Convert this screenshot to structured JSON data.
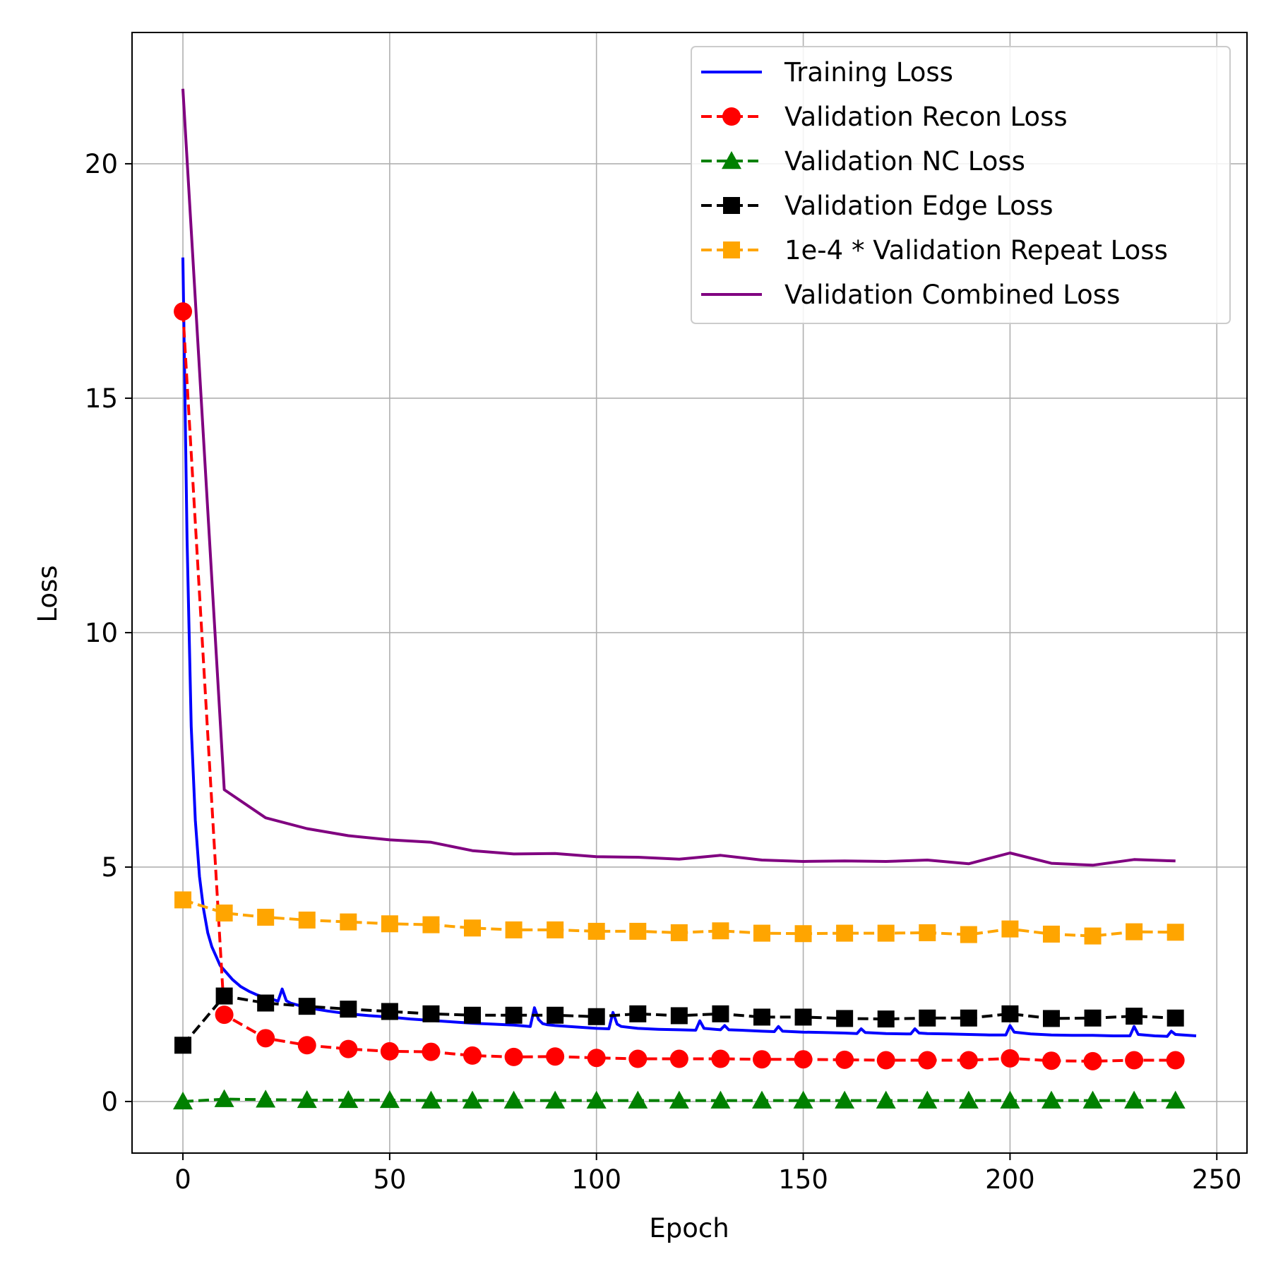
{
  "chart_data": {
    "type": "line",
    "title": "",
    "xlabel": "Epoch",
    "ylabel": "Loss",
    "xlim": [
      -12.3,
      257.3
    ],
    "ylim": [
      -1.1,
      22.8
    ],
    "xticks": [
      0,
      50,
      100,
      150,
      200,
      250
    ],
    "yticks": [
      0,
      5,
      10,
      15,
      20
    ],
    "grid": true,
    "legend_position": "upper-right",
    "series": [
      {
        "name": "Training Loss",
        "color": "#0000ff",
        "style": "solid",
        "marker": "none",
        "x": [
          0,
          1,
          2,
          3,
          4,
          5,
          6,
          7,
          8,
          9,
          10,
          12,
          14,
          16,
          18,
          20,
          22,
          23,
          24,
          25,
          26,
          28,
          30,
          35,
          40,
          45,
          50,
          55,
          60,
          65,
          70,
          75,
          80,
          84,
          85,
          86,
          87,
          88,
          90,
          95,
          100,
          103,
          104,
          105,
          106,
          110,
          115,
          120,
          124,
          125,
          126,
          130,
          131,
          132,
          135,
          140,
          143,
          144,
          145,
          150,
          155,
          160,
          163,
          164,
          165,
          170,
          175,
          176,
          177,
          178,
          180,
          185,
          190,
          195,
          199,
          200,
          201,
          205,
          210,
          215,
          220,
          225,
          229,
          230,
          231,
          235,
          238,
          239,
          240,
          245
        ],
        "y": [
          18.0,
          12.0,
          8.0,
          6.0,
          4.8,
          4.1,
          3.6,
          3.3,
          3.1,
          2.9,
          2.8,
          2.6,
          2.45,
          2.35,
          2.27,
          2.22,
          2.17,
          2.14,
          2.4,
          2.15,
          2.1,
          2.05,
          2.0,
          1.93,
          1.87,
          1.83,
          1.8,
          1.76,
          1.73,
          1.7,
          1.67,
          1.65,
          1.63,
          1.6,
          2.0,
          1.75,
          1.66,
          1.64,
          1.62,
          1.59,
          1.56,
          1.55,
          1.9,
          1.65,
          1.6,
          1.56,
          1.54,
          1.53,
          1.52,
          1.72,
          1.56,
          1.53,
          1.62,
          1.53,
          1.52,
          1.5,
          1.49,
          1.6,
          1.5,
          1.48,
          1.47,
          1.46,
          1.45,
          1.55,
          1.47,
          1.45,
          1.44,
          1.44,
          1.55,
          1.46,
          1.45,
          1.44,
          1.43,
          1.42,
          1.42,
          1.62,
          1.48,
          1.44,
          1.42,
          1.41,
          1.41,
          1.4,
          1.4,
          1.6,
          1.43,
          1.4,
          1.39,
          1.5,
          1.43,
          1.4
        ]
      },
      {
        "name": "Validation Recon Loss",
        "color": "#ff0000",
        "style": "dashed",
        "marker": "circle",
        "x": [
          0,
          10,
          20,
          30,
          40,
          50,
          60,
          70,
          80,
          90,
          100,
          110,
          120,
          130,
          140,
          150,
          160,
          170,
          180,
          190,
          200,
          210,
          220,
          230,
          240
        ],
        "y": [
          16.85,
          1.85,
          1.35,
          1.2,
          1.12,
          1.07,
          1.06,
          0.98,
          0.95,
          0.96,
          0.93,
          0.91,
          0.91,
          0.91,
          0.9,
          0.9,
          0.89,
          0.88,
          0.88,
          0.88,
          0.92,
          0.87,
          0.86,
          0.88,
          0.88
        ]
      },
      {
        "name": "Validation NC Loss",
        "color": "#008000",
        "style": "dashed",
        "marker": "triangle",
        "x": [
          0,
          10,
          20,
          30,
          40,
          50,
          60,
          70,
          80,
          90,
          100,
          110,
          120,
          130,
          140,
          150,
          160,
          170,
          180,
          190,
          200,
          210,
          220,
          230,
          240
        ],
        "y": [
          0.0,
          0.05,
          0.04,
          0.03,
          0.03,
          0.03,
          0.02,
          0.02,
          0.02,
          0.02,
          0.02,
          0.02,
          0.02,
          0.02,
          0.02,
          0.02,
          0.02,
          0.02,
          0.02,
          0.02,
          0.02,
          0.02,
          0.02,
          0.02,
          0.02
        ]
      },
      {
        "name": "Validation Edge Loss",
        "color": "#000000",
        "style": "dashed",
        "marker": "square",
        "x": [
          0,
          10,
          20,
          30,
          40,
          50,
          60,
          70,
          80,
          90,
          100,
          110,
          120,
          130,
          140,
          150,
          160,
          170,
          180,
          190,
          200,
          210,
          220,
          230,
          240
        ],
        "y": [
          1.2,
          2.25,
          2.1,
          2.03,
          1.97,
          1.92,
          1.87,
          1.84,
          1.84,
          1.84,
          1.81,
          1.87,
          1.83,
          1.87,
          1.8,
          1.8,
          1.77,
          1.76,
          1.78,
          1.78,
          1.87,
          1.77,
          1.78,
          1.82,
          1.78
        ]
      },
      {
        "name": "1e-4 * Validation Repeat Loss",
        "color": "#ffa500",
        "style": "dashed",
        "marker": "square",
        "x": [
          0,
          10,
          20,
          30,
          40,
          50,
          60,
          70,
          80,
          90,
          100,
          110,
          120,
          130,
          140,
          150,
          160,
          170,
          180,
          190,
          200,
          210,
          220,
          230,
          240
        ],
        "y": [
          4.3,
          4.02,
          3.93,
          3.87,
          3.83,
          3.79,
          3.77,
          3.7,
          3.66,
          3.66,
          3.63,
          3.63,
          3.6,
          3.64,
          3.59,
          3.58,
          3.59,
          3.59,
          3.6,
          3.56,
          3.68,
          3.57,
          3.53,
          3.62,
          3.61
        ]
      },
      {
        "name": "Validation Combined Loss",
        "color": "#800080",
        "style": "solid",
        "marker": "none",
        "x": [
          0,
          10,
          20,
          30,
          40,
          50,
          60,
          70,
          80,
          90,
          100,
          110,
          120,
          130,
          140,
          150,
          160,
          170,
          180,
          190,
          200,
          210,
          220,
          230,
          240
        ],
        "y": [
          21.6,
          6.65,
          6.05,
          5.82,
          5.67,
          5.58,
          5.53,
          5.35,
          5.28,
          5.29,
          5.22,
          5.21,
          5.17,
          5.25,
          5.15,
          5.12,
          5.13,
          5.12,
          5.15,
          5.07,
          5.3,
          5.08,
          5.04,
          5.16,
          5.13
        ]
      }
    ]
  }
}
